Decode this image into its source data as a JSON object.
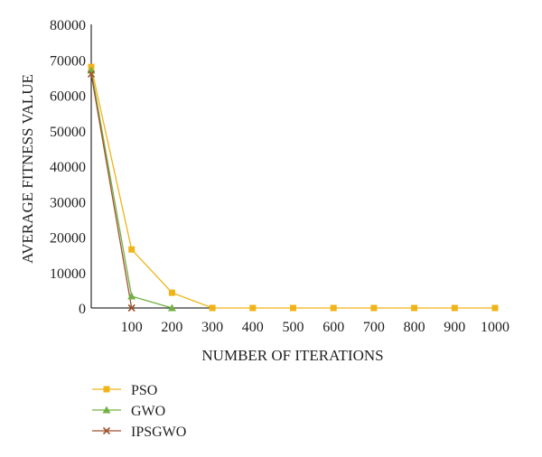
{
  "chart_data": {
    "type": "line",
    "title": "",
    "xlabel": "NUMBER OF ITERATIONS",
    "ylabel": "AVERAGE FITNESS VALUE",
    "ylim": [
      0,
      80000
    ],
    "xlim": [
      0,
      1000
    ],
    "grid": false,
    "legend_position": "bottom-left",
    "y_ticks": [
      "0",
      "10000",
      "20000",
      "30000",
      "40000",
      "50000",
      "60000",
      "70000",
      "80000"
    ],
    "x_ticks": [
      "100",
      "200",
      "300",
      "400",
      "500",
      "600",
      "700",
      "800",
      "900",
      "1000"
    ],
    "series": [
      {
        "name": "PSO",
        "color": "#f0b418",
        "marker": "square",
        "x": [
          0,
          100,
          200,
          300,
          400,
          500,
          600,
          700,
          800,
          900,
          1000
        ],
        "values": [
          68000,
          16500,
          4300,
          0,
          0,
          0,
          0,
          0,
          0,
          0,
          0
        ]
      },
      {
        "name": "GWO",
        "color": "#72b043",
        "marker": "triangle",
        "x": [
          0,
          100,
          200
        ],
        "values": [
          67000,
          3300,
          0
        ]
      },
      {
        "name": "IPSGWO",
        "color": "#a0522d",
        "marker": "x",
        "x": [
          0,
          100
        ],
        "values": [
          66000,
          0
        ]
      }
    ]
  }
}
